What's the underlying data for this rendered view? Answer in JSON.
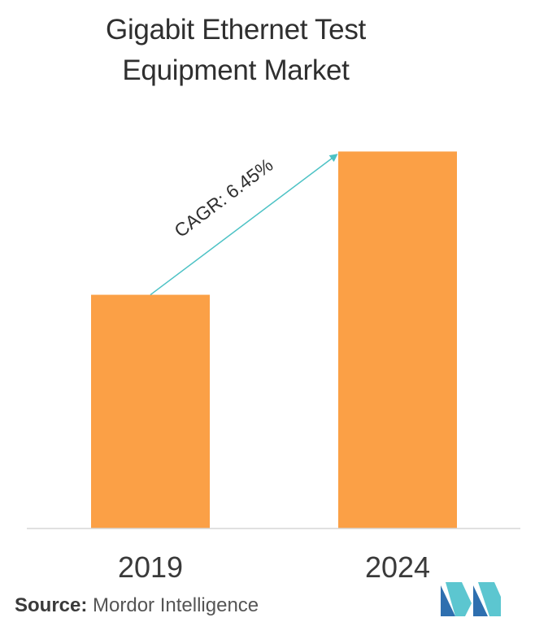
{
  "chart_data": {
    "type": "bar",
    "title_lines": [
      "Gigabit Ethernet Test",
      "Equipment Market"
    ],
    "categories": [
      "2019",
      "2024"
    ],
    "values": [
      0.62,
      1.0
    ],
    "xlabel": "",
    "ylabel": "",
    "ylim": [
      0,
      1.1
    ],
    "grid": false,
    "legend": "none",
    "annotation": "CAGR: 6.45%",
    "bar_color": "#FBA046",
    "arrow_color": "#4CC2C5"
  },
  "source": {
    "label": "Source:",
    "name": "Mordor Intelligence"
  },
  "logo": {
    "icon": "mordor-intelligence-logo-icon",
    "colors": [
      "#2E6FAF",
      "#5CC6D0"
    ]
  }
}
